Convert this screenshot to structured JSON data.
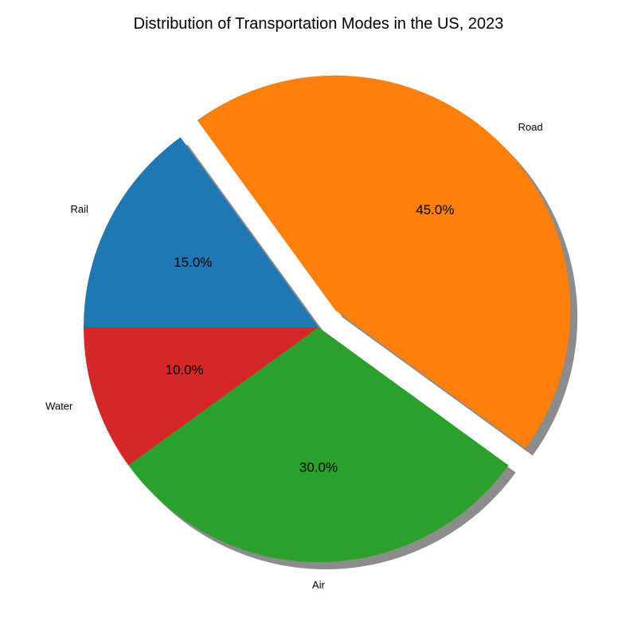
{
  "chart_data": {
    "type": "pie",
    "title": "Distribution of Transportation Modes in the US, 2023",
    "slices": [
      {
        "label": "Road",
        "value": 45.0,
        "pct_label": "45.0%",
        "color": "#ff7f0e",
        "exploded": true
      },
      {
        "label": "Rail",
        "value": 15.0,
        "pct_label": "15.0%",
        "color": "#1f77b4",
        "exploded": false
      },
      {
        "label": "Water",
        "value": 10.0,
        "pct_label": "10.0%",
        "color": "#d62728",
        "exploded": false
      },
      {
        "label": "Air",
        "value": 30.0,
        "pct_label": "30.0%",
        "color": "#2ca02c",
        "exploded": false
      }
    ],
    "shadow": true,
    "start_angle_deg": -36,
    "direction": "counterclockwise"
  }
}
